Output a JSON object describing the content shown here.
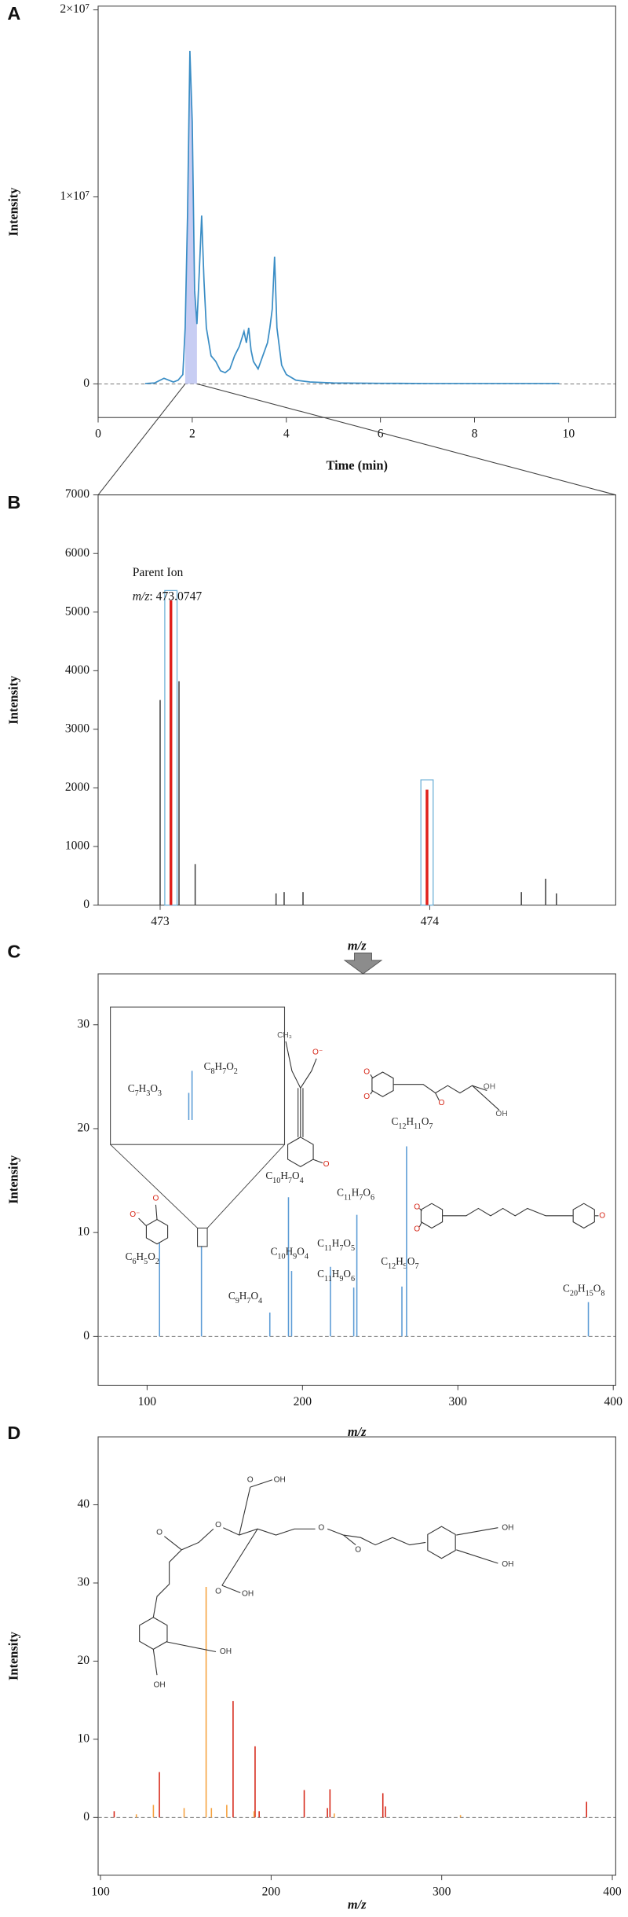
{
  "chart_data": [
    {
      "type": "line",
      "panel": "A",
      "ylabel": "Intensity",
      "xlabel": "Time (min)",
      "x": [
        1.0,
        1.2,
        1.4,
        1.6,
        1.7,
        1.8,
        1.85,
        1.9,
        1.95,
        2.0,
        2.05,
        2.1,
        2.15,
        2.2,
        2.25,
        2.3,
        2.4,
        2.5,
        2.6,
        2.7,
        2.8,
        2.9,
        3.0,
        3.1,
        3.15,
        3.2,
        3.25,
        3.3,
        3.4,
        3.5,
        3.6,
        3.65,
        3.7,
        3.75,
        3.8,
        3.9,
        4.0,
        4.2,
        4.5,
        5.0,
        6.0,
        7.0,
        8.0,
        9.0,
        9.8
      ],
      "values": [
        20000,
        50000,
        300000,
        100000,
        200000,
        500000,
        3000000,
        9000000,
        17800000,
        14000000,
        5000000,
        3200000,
        6000000,
        9000000,
        5500000,
        3000000,
        1500000,
        1200000,
        700000,
        600000,
        800000,
        1500000,
        2000000,
        2800000,
        2200000,
        3000000,
        1800000,
        1200000,
        800000,
        1500000,
        2200000,
        3000000,
        4000000,
        6800000,
        3000000,
        1000000,
        500000,
        200000,
        100000,
        50000,
        30000,
        20000,
        20000,
        20000,
        20000
      ],
      "color": "#3a8dc5",
      "highlight": [
        1.85,
        2.1
      ],
      "highlight_color": "#c7cdf3",
      "xlim": [
        0,
        11
      ],
      "xticks": [
        0,
        2,
        4,
        6,
        8,
        10
      ],
      "ylim": [
        -1800000,
        20200000
      ],
      "yticks": [
        0,
        {
          "value": 10000000,
          "label": "1×10⁷"
        },
        {
          "value": 20000000,
          "label": "2×10⁷"
        }
      ],
      "zero_line": true
    },
    {
      "type": "stem",
      "panel": "B",
      "ylabel": "Intensity",
      "xlabel": "m/z",
      "annotations": [
        "Parent Ion",
        "m/z: 473.0747"
      ],
      "series": [
        {
          "color": "#444444",
          "x": [
            473.0,
            473.07,
            473.13,
            473.43,
            473.46,
            473.53,
            474.34,
            474.43,
            474.47
          ],
          "values": [
            3500,
            3820,
            700,
            200,
            220,
            220,
            220,
            450,
            200
          ]
        },
        {
          "color": "#e0201b",
          "x": [
            473.04,
            473.99
          ],
          "values": [
            5200,
            1970
          ],
          "box_color": "#6aaed6"
        }
      ],
      "xlim": [
        472.77,
        474.69
      ],
      "xticks": [
        473,
        474
      ],
      "ylim": [
        0,
        7000
      ],
      "yticks": [
        0,
        1000,
        2000,
        3000,
        4000,
        5000,
        6000,
        7000
      ],
      "zero_line": false
    },
    {
      "type": "stem",
      "panel": "C",
      "ylabel": "Intensity",
      "xlabel": "m/z",
      "series": [
        {
          "color": "#5b9bd5",
          "x": [
            108,
            135,
            179,
            191,
            193,
            218,
            233,
            235,
            264,
            267,
            384
          ],
          "values": [
            9.0,
            8.7,
            2.3,
            13.4,
            6.3,
            6.7,
            4.7,
            11.7,
            4.8,
            18.3,
            3.3
          ],
          "peak_labels": [
            "C6H5O2",
            null,
            "C9H7O4",
            "C10H7O4",
            "C10H9O4",
            "C11H7O5",
            "C11H9O6",
            "C11H7O6",
            "C12H9O7",
            "C12H11O7",
            "C20H15O8"
          ]
        }
      ],
      "inset": {
        "x": [
          134.96,
          134.975
        ],
        "values": [
          4.8,
          8.7
        ],
        "peak_labels": [
          "C7H3O3",
          "C8H7O2"
        ],
        "xlim": [
          134.6,
          135.4
        ],
        "ylim": [
          0,
          20
        ],
        "color": "#5b9bd5"
      },
      "structure_labels": [
        "O⁻",
        "O",
        "CH₃",
        "O⁻",
        "O",
        "O",
        "O",
        "O",
        "OH",
        "OH",
        "O",
        "O",
        "O"
      ],
      "xlim": [
        68.5,
        401.6
      ],
      "xticks": [
        100,
        200,
        300,
        400
      ],
      "ylim": [
        -4.7,
        34.9
      ],
      "yticks": [
        0,
        10,
        20,
        30
      ],
      "zero_line": true
    },
    {
      "type": "stem",
      "panel": "D",
      "ylabel": "Intensity",
      "xlabel": "m/z",
      "series": [
        {
          "color": "#d62718",
          "x": [
            108,
            134.5,
            177.7,
            190.6,
            193,
            219.4,
            233,
            234.5,
            265.5,
            267,
            384.9
          ],
          "values": [
            0.8,
            5.8,
            14.9,
            9.1,
            0.8,
            3.5,
            1.2,
            3.6,
            3.1,
            1.4,
            2.0
          ]
        },
        {
          "color": "#f5a03c",
          "x": [
            121,
            131,
            149,
            161.9,
            165,
            174,
            190,
            237,
            311
          ],
          "values": [
            0.4,
            1.6,
            1.2,
            29.5,
            1.2,
            1.6,
            0.8,
            0.5,
            0.3
          ]
        }
      ],
      "structure_labels": [
        "O",
        "OH",
        "O",
        "O",
        "O",
        "O",
        "O",
        "OH",
        "OH",
        "OH",
        "OH",
        "OH"
      ],
      "xlim": [
        98.6,
        402
      ],
      "xticks": [
        100,
        200,
        300,
        400
      ],
      "ylim": [
        -7.4,
        48.7
      ],
      "yticks": [
        0,
        10,
        20,
        30,
        40
      ],
      "zero_line": true
    }
  ]
}
